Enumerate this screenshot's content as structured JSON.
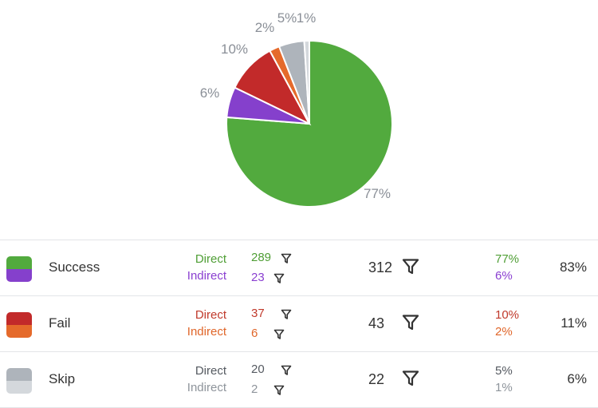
{
  "chart_data": {
    "type": "pie",
    "slices": [
      {
        "label": "77%",
        "value": 77,
        "color": "#52aa3e"
      },
      {
        "label": "6%",
        "value": 6,
        "color": "#8540cc"
      },
      {
        "label": "10%",
        "value": 10,
        "color": "#c22a2a"
      },
      {
        "label": "2%",
        "value": 2,
        "color": "#e56a2b"
      },
      {
        "label": "5%",
        "value": 5,
        "color": "#aeb4bb"
      },
      {
        "label": "1%",
        "value": 1,
        "color": "#d4d8dc"
      }
    ],
    "slice_order": "clockwise-from-top: 77, 6, 10, 2, 5, 1 (77% starts at 12 o'clock going clockwise)"
  },
  "rows": [
    {
      "name": "Success",
      "colors": {
        "direct": "#52aa3e",
        "indirect": "#8540cc"
      },
      "direct_label": "Direct",
      "indirect_label": "Indirect",
      "direct_value": "289",
      "indirect_value": "23",
      "total": "312",
      "direct_pct": "77%",
      "indirect_pct": "6%",
      "total_pct": "83%",
      "text_colors": {
        "direct": "#4f9e35",
        "indirect": "#8a3fd1"
      }
    },
    {
      "name": "Fail",
      "colors": {
        "direct": "#c22a2a",
        "indirect": "#e56a2b"
      },
      "direct_label": "Direct",
      "indirect_label": "Indirect",
      "direct_value": "37",
      "indirect_value": "6",
      "total": "43",
      "direct_pct": "10%",
      "indirect_pct": "2%",
      "total_pct": "11%",
      "text_colors": {
        "direct": "#c0392b",
        "indirect": "#e0662a"
      }
    },
    {
      "name": "Skip",
      "colors": {
        "direct": "#aeb4bb",
        "indirect": "#d4d8dc"
      },
      "direct_label": "Direct",
      "indirect_label": "Indirect",
      "direct_value": "20",
      "indirect_value": "2",
      "total": "22",
      "direct_pct": "5%",
      "indirect_pct": "1%",
      "total_pct": "6%",
      "text_colors": {
        "direct": "#555a61",
        "indirect": "#8e949b"
      }
    }
  ],
  "icons": {
    "filter": "filter-funnel-icon"
  }
}
